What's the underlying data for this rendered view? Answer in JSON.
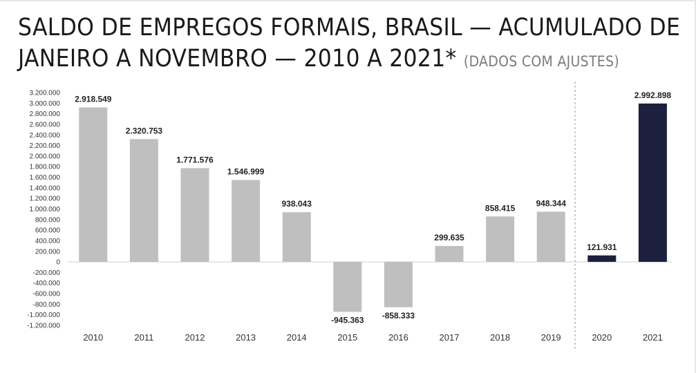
{
  "title": {
    "main": "SALDO DE EMPREGOS FORMAIS, BRASIL — ACUMULADO DE JANEIRO A NOVEMBRO — 2010 A 2021*",
    "note": "(DADOS COM AJUSTES)"
  },
  "chart_data": {
    "type": "bar",
    "title": "SALDO DE EMPREGOS FORMAIS, BRASIL — ACUMULADO DE JANEIRO A NOVEMBRO — 2010 A 2021* (DADOS COM AJUSTES)",
    "categories": [
      "2010",
      "2011",
      "2012",
      "2013",
      "2014",
      "2015",
      "2016",
      "2017",
      "2018",
      "2019",
      "2020",
      "2021"
    ],
    "values": [
      2918549,
      2320753,
      1771576,
      1546999,
      938043,
      -945363,
      -858333,
      299635,
      858415,
      948344,
      121931,
      2992898
    ],
    "data_labels": [
      "2.918.549",
      "2.320.753",
      "1.771.576",
      "1.546.999",
      "938.043",
      "-945.363",
      "-858.333",
      "299.635",
      "858.415",
      "948.344",
      "121.931",
      "2.992.898"
    ],
    "bar_colors": [
      "#bfbfbf",
      "#bfbfbf",
      "#bfbfbf",
      "#bfbfbf",
      "#bfbfbf",
      "#bfbfbf",
      "#bfbfbf",
      "#bfbfbf",
      "#bfbfbf",
      "#bfbfbf",
      "#1c1f3d",
      "#1c1f3d"
    ],
    "ylim": [
      -1200000,
      3200000
    ],
    "yticks": [
      3200000,
      3000000,
      2800000,
      2600000,
      2400000,
      2200000,
      2000000,
      1800000,
      1600000,
      1400000,
      1200000,
      1000000,
      800000,
      600000,
      400000,
      200000,
      0,
      -200000,
      -400000,
      -600000,
      -800000,
      -1000000,
      -1200000
    ],
    "ytick_labels": [
      "3.200.000",
      "3.000.000",
      "2.800.000",
      "2.600.000",
      "2.400.000",
      "2.200.000",
      "2.000.000",
      "1.800.000",
      "1.600.000",
      "1.400.000",
      "1.200.000",
      "1.000.000",
      "800.000",
      "600.000",
      "400.000",
      "200.000",
      "0",
      "-200.000",
      "-400.000",
      "-600.000",
      "-800.000",
      "-1.000.000",
      "-1.200.000"
    ],
    "separator_after_category": "2019",
    "grid": false,
    "legend": "none",
    "xlabel": "",
    "ylabel": ""
  }
}
